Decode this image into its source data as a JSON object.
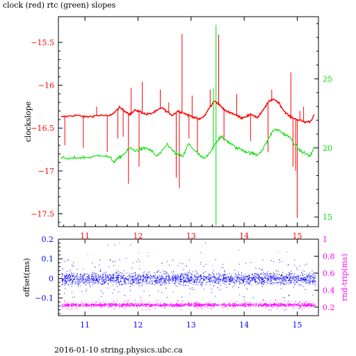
{
  "header": {
    "title": "clock (red) rtc (green) slopes"
  },
  "footer": {
    "text": "2016-01-10  string.physics.ubc.ca"
  },
  "colors": {
    "red": "#ff0000",
    "green": "#00dd00",
    "blue": "#0000ff",
    "magenta": "#ff00ff",
    "frame": "#000000"
  },
  "chart_data": [
    {
      "type": "line",
      "title": "clock (red) rtc (green) slopes",
      "ylabel": "clockslope",
      "xlim": [
        10.5,
        15.4
      ],
      "x_ticks": [
        "11",
        "12",
        "13",
        "14",
        "15"
      ],
      "ylim": [
        -17.65,
        -15.2
      ],
      "y_ticks": [
        "-15.5",
        "-16",
        "-16.5",
        "-17",
        "-17.5"
      ],
      "y2lim": [
        14.3,
        29.5
      ],
      "y2_ticks": [
        "25",
        "20",
        "15"
      ],
      "series": [
        {
          "name": "clock",
          "color": "#ff0000",
          "axis": "left",
          "x": [
            10.55,
            10.7,
            10.85,
            11.0,
            11.15,
            11.3,
            11.45,
            11.55,
            11.65,
            11.75,
            11.85,
            11.95,
            12.05,
            12.15,
            12.25,
            12.35,
            12.45,
            12.55,
            12.65,
            12.75,
            12.85,
            12.95,
            13.05,
            13.15,
            13.25,
            13.35,
            13.45,
            13.55,
            13.65,
            13.75,
            13.85,
            13.95,
            14.05,
            14.15,
            14.25,
            14.35,
            14.45,
            14.55,
            14.65,
            14.75,
            14.85,
            14.95,
            15.05,
            15.15,
            15.25,
            15.32
          ],
          "values": [
            -16.37,
            -16.36,
            -16.35,
            -16.37,
            -16.36,
            -16.35,
            -16.36,
            -16.32,
            -16.26,
            -16.3,
            -16.34,
            -16.29,
            -16.31,
            -16.34,
            -16.33,
            -16.3,
            -16.26,
            -16.31,
            -16.35,
            -16.3,
            -16.32,
            -16.35,
            -16.37,
            -16.4,
            -16.36,
            -16.26,
            -16.18,
            -16.24,
            -16.3,
            -16.32,
            -16.35,
            -16.38,
            -16.36,
            -16.34,
            -16.38,
            -16.3,
            -16.2,
            -16.16,
            -16.2,
            -16.3,
            -16.36,
            -16.39,
            -16.41,
            -16.43,
            -16.42,
            -16.35
          ],
          "spikes": [
            {
              "x": 10.62,
              "y": -16.7
            },
            {
              "x": 10.97,
              "y": -16.73
            },
            {
              "x": 11.22,
              "y": -16.25
            },
            {
              "x": 11.42,
              "y": -16.78
            },
            {
              "x": 11.62,
              "y": -16.62
            },
            {
              "x": 11.72,
              "y": -16.6
            },
            {
              "x": 11.82,
              "y": -17.15
            },
            {
              "x": 11.87,
              "y": -16.03
            },
            {
              "x": 12.02,
              "y": -16.95
            },
            {
              "x": 12.08,
              "y": -15.96
            },
            {
              "x": 12.42,
              "y": -16.05
            },
            {
              "x": 12.58,
              "y": -16.2
            },
            {
              "x": 12.72,
              "y": -17.08
            },
            {
              "x": 12.78,
              "y": -17.2
            },
            {
              "x": 12.83,
              "y": -15.4
            },
            {
              "x": 12.96,
              "y": -16.62
            },
            {
              "x": 13.02,
              "y": -16.12
            },
            {
              "x": 13.12,
              "y": -16.8
            },
            {
              "x": 13.36,
              "y": -16.05
            },
            {
              "x": 13.52,
              "y": -15.41
            },
            {
              "x": 13.62,
              "y": -16.65
            },
            {
              "x": 13.86,
              "y": -16.1
            },
            {
              "x": 14.12,
              "y": -16.65
            },
            {
              "x": 14.45,
              "y": -16.78
            },
            {
              "x": 14.52,
              "y": -16.05
            },
            {
              "x": 14.88,
              "y": -15.85
            },
            {
              "x": 14.92,
              "y": -16.95
            },
            {
              "x": 14.97,
              "y": -17.0
            },
            {
              "x": 15.0,
              "y": -17.55
            },
            {
              "x": 15.05,
              "y": -16.3
            },
            {
              "x": 15.12,
              "y": -16.25
            }
          ]
        },
        {
          "name": "rtc",
          "color": "#00dd00",
          "axis": "right",
          "x": [
            10.55,
            10.7,
            10.85,
            11.0,
            11.15,
            11.3,
            11.45,
            11.55,
            11.65,
            11.75,
            11.85,
            11.95,
            12.05,
            12.15,
            12.25,
            12.35,
            12.45,
            12.55,
            12.65,
            12.75,
            12.85,
            12.95,
            13.05,
            13.15,
            13.25,
            13.35,
            13.45,
            13.55,
            13.65,
            13.75,
            13.85,
            13.95,
            14.05,
            14.15,
            14.25,
            14.35,
            14.45,
            14.55,
            14.65,
            14.75,
            14.85,
            14.95,
            15.05,
            15.15,
            15.25,
            15.32
          ],
          "values": [
            19.3,
            19.2,
            19.3,
            19.3,
            19.35,
            19.5,
            19.35,
            19.0,
            19.3,
            19.6,
            20.0,
            19.8,
            19.9,
            20.0,
            19.8,
            19.4,
            19.7,
            20.3,
            19.8,
            19.5,
            19.4,
            20.3,
            19.9,
            19.5,
            19.2,
            19.6,
            20.3,
            20.8,
            20.6,
            20.3,
            20.0,
            19.9,
            19.7,
            19.6,
            19.5,
            19.9,
            20.6,
            21.3,
            21.3,
            21.0,
            20.8,
            20.3,
            19.8,
            19.6,
            19.4,
            20.1
          ],
          "spikes": [
            {
              "x": 13.47,
              "y": 28.9
            },
            {
              "x": 13.47,
              "y": 14.4
            },
            {
              "x": 13.42,
              "y": 24.3
            }
          ]
        }
      ]
    },
    {
      "type": "scatter",
      "xlim": [
        10.5,
        15.4
      ],
      "x_ticks": [
        "11",
        "12",
        "13",
        "14",
        "15"
      ],
      "ylabel": "offset(ms)",
      "ylim": [
        -0.19,
        0.2
      ],
      "y_ticks": [
        "0.2",
        "0.1",
        "0",
        "-0.1"
      ],
      "y2label": "rnd-trip(ms)",
      "y2lim": [
        0.1,
        1.0
      ],
      "y2_ticks": [
        "1",
        "0.8",
        "0.6",
        "0.4",
        "0.2"
      ],
      "series": [
        {
          "name": "offset",
          "color": "#0000ff",
          "axis": "left",
          "center": 0.0,
          "spread": 0.03,
          "outlier_spread": 0.1
        },
        {
          "name": "rnd-trip",
          "color": "#ff00ff",
          "axis": "right",
          "center": 0.23,
          "spread": 0.02,
          "outlier_spread": 0.06
        }
      ]
    }
  ]
}
